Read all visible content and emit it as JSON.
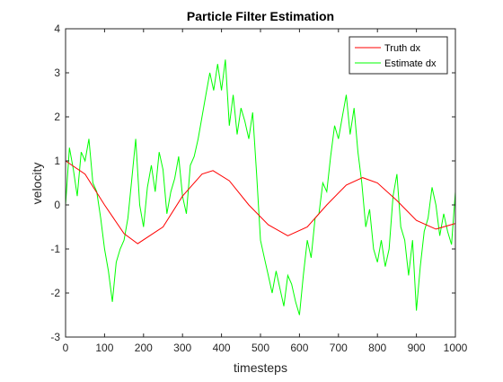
{
  "chart_data": {
    "type": "line",
    "title": "Particle Filter Estimation",
    "xlabel": "timesteps",
    "ylabel": "velocity",
    "xlim": [
      0,
      1000
    ],
    "ylim": [
      -3,
      4
    ],
    "xticks": [
      "0",
      "100",
      "200",
      "300",
      "400",
      "500",
      "600",
      "700",
      "800",
      "900",
      "1000"
    ],
    "yticks": [
      "-3",
      "-2",
      "-1",
      "0",
      "1",
      "2",
      "3",
      "4"
    ],
    "grid": false,
    "legend": "top-right",
    "series": [
      {
        "name": "Truth dx",
        "color": "#ff0000",
        "x": [
          0,
          50,
          100,
          150,
          185,
          250,
          300,
          350,
          378,
          420,
          470,
          520,
          570,
          620,
          670,
          720,
          762,
          800,
          850,
          900,
          950,
          1000
        ],
        "y": [
          1.0,
          0.7,
          0.0,
          -0.65,
          -0.88,
          -0.5,
          0.2,
          0.7,
          0.78,
          0.55,
          0.0,
          -0.45,
          -0.7,
          -0.5,
          0.0,
          0.45,
          0.62,
          0.5,
          0.1,
          -0.35,
          -0.55,
          -0.42
        ]
      },
      {
        "name": "Estimate dx",
        "color": "#00ff00",
        "x": [
          0,
          10,
          20,
          30,
          40,
          50,
          60,
          70,
          80,
          90,
          100,
          110,
          120,
          130,
          140,
          150,
          160,
          170,
          180,
          190,
          200,
          210,
          220,
          230,
          240,
          250,
          260,
          270,
          280,
          290,
          300,
          310,
          320,
          330,
          340,
          350,
          360,
          370,
          380,
          390,
          400,
          410,
          420,
          430,
          440,
          450,
          460,
          470,
          480,
          490,
          500,
          510,
          520,
          530,
          540,
          550,
          560,
          570,
          580,
          590,
          600,
          610,
          620,
          630,
          640,
          650,
          660,
          670,
          680,
          690,
          700,
          710,
          720,
          730,
          740,
          750,
          760,
          770,
          780,
          790,
          800,
          810,
          820,
          830,
          840,
          850,
          860,
          870,
          880,
          890,
          900,
          910,
          920,
          930,
          940,
          950,
          960,
          970,
          980,
          990,
          1000
        ],
        "y": [
          0.0,
          1.3,
          0.8,
          0.2,
          1.2,
          1.0,
          1.5,
          0.5,
          0.3,
          -0.3,
          -1.0,
          -1.5,
          -2.2,
          -1.3,
          -1.0,
          -0.8,
          -0.3,
          0.6,
          1.5,
          0.0,
          -0.5,
          0.4,
          0.9,
          0.3,
          1.2,
          0.8,
          -0.2,
          0.3,
          0.6,
          1.1,
          0.2,
          -0.2,
          0.9,
          1.1,
          1.5,
          2.0,
          2.5,
          3.0,
          2.6,
          3.2,
          2.6,
          3.3,
          1.8,
          2.5,
          1.6,
          2.2,
          1.9,
          1.5,
          2.1,
          0.7,
          -0.8,
          -1.2,
          -1.6,
          -2.0,
          -1.5,
          -1.9,
          -2.3,
          -1.6,
          -1.8,
          -2.2,
          -2.5,
          -1.6,
          -0.8,
          -1.2,
          -0.3,
          -0.2,
          0.5,
          0.3,
          1.1,
          1.8,
          1.5,
          2.0,
          2.5,
          1.6,
          2.2,
          1.2,
          0.5,
          -0.5,
          -0.1,
          -1.0,
          -1.3,
          -0.8,
          -1.4,
          -1.0,
          0.2,
          0.7,
          -0.5,
          -0.8,
          -1.6,
          -0.8,
          -2.4,
          -1.4,
          -0.6,
          -0.3,
          0.4,
          0.0,
          -0.7,
          -0.2,
          -0.6,
          -0.9,
          0.3
        ]
      }
    ]
  }
}
